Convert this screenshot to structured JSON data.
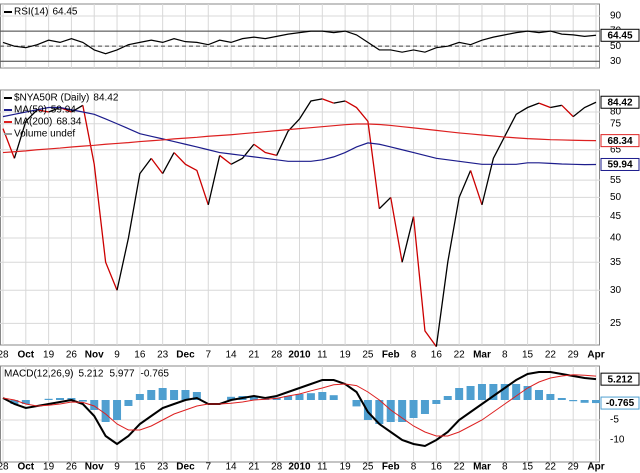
{
  "chart_data": [
    {
      "type": "line",
      "ylim": [
        21,
        106
      ],
      "yticks": [
        30,
        50,
        70,
        90
      ],
      "hlines": [
        30,
        50,
        70
      ],
      "dashed_hline": 50,
      "series": [
        {
          "name": "RSI(14)",
          "color": "#000000",
          "end_label": true,
          "values": [
            55,
            50,
            48,
            52,
            58,
            55,
            60,
            55,
            45,
            40,
            45,
            52,
            55,
            58,
            55,
            60,
            56,
            55,
            52,
            58,
            55,
            60,
            62,
            60,
            63,
            66,
            68,
            70,
            70,
            68,
            70,
            65,
            55,
            45,
            45,
            42,
            45,
            42,
            48,
            50,
            55,
            52,
            58,
            62,
            65,
            68,
            70,
            68,
            70,
            66,
            65,
            63,
            64.45
          ]
        }
      ]
    },
    {
      "type": "line",
      "log_scale": true,
      "ylim": [
        22.2,
        90.3
      ],
      "yticks": [
        25,
        30,
        35,
        40,
        45,
        50,
        55,
        65,
        75,
        80
      ],
      "grid": true,
      "categories": [
        "28",
        null,
        "Oct",
        null,
        "19",
        null,
        "26",
        null,
        "Nov",
        null,
        "9",
        null,
        "16",
        null,
        "23",
        null,
        "Dec",
        null,
        "7",
        null,
        "14",
        null,
        "21",
        null,
        "28",
        null,
        "2010",
        null,
        "11",
        null,
        "19",
        null,
        "25",
        null,
        "Feb",
        null,
        "8",
        null,
        "16",
        null,
        "22",
        null,
        "Mar",
        null,
        "8",
        null,
        "15",
        null,
        "22",
        null,
        "29",
        null,
        "Apr"
      ],
      "legend_note": "Volume undef",
      "series": [
        {
          "name": "$NYA50R (Daily)",
          "color": "#000000",
          "down_color": "#cc0000",
          "end_label": true,
          "values": [
            73,
            62,
            76,
            81,
            80,
            82,
            80,
            83,
            60,
            35,
            30,
            40,
            57,
            62,
            57,
            64,
            60,
            58,
            48,
            63,
            60,
            62,
            67,
            64,
            63,
            72,
            77,
            85,
            86,
            84,
            85,
            82,
            76,
            47,
            50,
            35,
            45,
            24,
            22,
            35,
            50,
            58,
            48,
            62,
            70,
            79,
            82,
            84,
            82,
            83,
            78,
            82,
            84.42
          ]
        },
        {
          "name": "MA(50)",
          "color": "#1c1c8c",
          "end_label": true,
          "values": [
            78,
            79,
            80,
            81,
            82,
            82,
            81,
            80,
            79,
            77,
            75,
            73,
            71,
            70,
            69,
            68,
            67,
            66,
            65,
            64,
            63.5,
            63,
            62.5,
            62,
            61.5,
            61,
            61,
            61,
            61.5,
            62.5,
            64,
            66,
            67.5,
            67,
            66,
            65,
            64,
            63,
            62,
            61.5,
            61,
            60.5,
            60,
            60,
            60,
            60,
            60.5,
            60.5,
            60.3,
            60.1,
            60,
            59.9,
            59.94
          ]
        },
        {
          "name": "MA(200)",
          "color": "#dd2020",
          "end_label": true,
          "values": [
            64,
            64.3,
            64.6,
            65,
            65.3,
            65.6,
            66,
            66.3,
            66.6,
            67,
            67.3,
            67.6,
            68,
            68.3,
            68.6,
            69,
            69.3,
            69.6,
            70,
            70.3,
            70.6,
            71,
            71.4,
            71.8,
            72.2,
            72.6,
            73,
            73.4,
            73.8,
            74.2,
            74.6,
            74.9,
            74.9,
            74.7,
            74.3,
            73.8,
            73.3,
            72.8,
            72.3,
            71.8,
            71.3,
            70.9,
            70.5,
            70.1,
            69.7,
            69.4,
            69.1,
            68.9,
            68.7,
            68.6,
            68.5,
            68.4,
            68.34
          ]
        }
      ]
    },
    {
      "type": "line",
      "title": "MACD(12,26,9)",
      "ylim": [
        -15.5,
        8.5
      ],
      "yticks": [
        -10,
        -5
      ],
      "series": [
        {
          "type": "bar",
          "color": "#4f9fd0",
          "end_label": true,
          "values": [
            0,
            -1,
            -1,
            0,
            0.3,
            0.5,
            0.5,
            -0.4,
            -2.5,
            -5.5,
            -5,
            -1.5,
            1.5,
            2.5,
            3,
            2.5,
            2.5,
            2,
            0,
            0,
            0.8,
            1,
            1,
            0.3,
            0.6,
            1,
            1.5,
            1.7,
            2,
            1.2,
            0,
            -1.6,
            -5,
            -6,
            -5.5,
            -5.5,
            -4.5,
            -3.5,
            -1,
            1,
            3,
            3.5,
            4,
            4,
            4,
            4,
            3.5,
            2.5,
            1.5,
            0.5,
            -0.3,
            -0.7,
            -0.765
          ]
        },
        {
          "color": "#000000",
          "width": 2,
          "end_label": true,
          "values": [
            0.5,
            -1,
            -2,
            -1.5,
            -1,
            -0.5,
            0,
            -1,
            -4,
            -9,
            -11,
            -9,
            -6,
            -4,
            -2,
            -1,
            0,
            0.5,
            -1,
            -1,
            0,
            0.5,
            1,
            0.5,
            1,
            2,
            3,
            4,
            5,
            5,
            4,
            2,
            -3,
            -6,
            -8,
            -10,
            -11,
            -11.5,
            -10,
            -8,
            -5,
            -3,
            -1,
            1,
            3,
            5,
            6.5,
            7,
            7,
            6.5,
            6,
            5.5,
            5.212
          ]
        },
        {
          "color": "#dd2020",
          "width": 1,
          "values": [
            0.5,
            0,
            -1,
            -1.5,
            -1.3,
            -1,
            -0.5,
            -0.6,
            -1.5,
            -3.5,
            -6,
            -7.5,
            -7.5,
            -6.5,
            -5,
            -3.5,
            -2.5,
            -1.5,
            -1,
            -1,
            -0.8,
            -0.5,
            0,
            0.2,
            0.4,
            1,
            1.5,
            2.3,
            3,
            3.8,
            4,
            3.6,
            2,
            0,
            -2.5,
            -4.5,
            -6.5,
            -8,
            -9,
            -9,
            -8,
            -6.5,
            -5,
            -3,
            -1,
            1,
            3,
            4.5,
            5.5,
            6,
            6.3,
            6.2,
            5.977
          ]
        }
      ]
    }
  ]
}
